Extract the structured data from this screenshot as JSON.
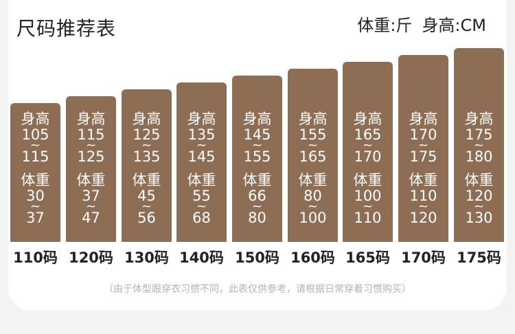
{
  "header": {
    "title": "尺码推荐表",
    "weight_unit": "体重:斤",
    "height_unit": "身高:CM"
  },
  "chart_data": {
    "type": "table",
    "height_label": "身高",
    "weight_label": "体重",
    "separator": "~",
    "sizes": [
      {
        "size": "110码",
        "height": [
          "105",
          "115"
        ],
        "weight": [
          "30",
          "37"
        ]
      },
      {
        "size": "120码",
        "height": [
          "115",
          "125"
        ],
        "weight": [
          "37",
          "47"
        ]
      },
      {
        "size": "130码",
        "height": [
          "125",
          "135"
        ],
        "weight": [
          "45",
          "56"
        ]
      },
      {
        "size": "140码",
        "height": [
          "135",
          "145"
        ],
        "weight": [
          "55",
          "68"
        ]
      },
      {
        "size": "150码",
        "height": [
          "145",
          "155"
        ],
        "weight": [
          "66",
          "80"
        ]
      },
      {
        "size": "160码",
        "height": [
          "155",
          "165"
        ],
        "weight": [
          "80",
          "100"
        ]
      },
      {
        "size": "165码",
        "height": [
          "165",
          "170"
        ],
        "weight": [
          "100",
          "110"
        ]
      },
      {
        "size": "170码",
        "height": [
          "170",
          "175"
        ],
        "weight": [
          "110",
          "120"
        ]
      },
      {
        "size": "175码",
        "height": [
          "175",
          "180"
        ],
        "weight": [
          "120",
          "130"
        ]
      }
    ]
  },
  "colors": {
    "bar": "#8e6d55",
    "text": "#222222",
    "note": "#b3b3b3"
  },
  "footer": {
    "note": "（由于体型跟穿衣习惯不同，此表仅供参考，请根据日常穿着习惯购买）"
  }
}
